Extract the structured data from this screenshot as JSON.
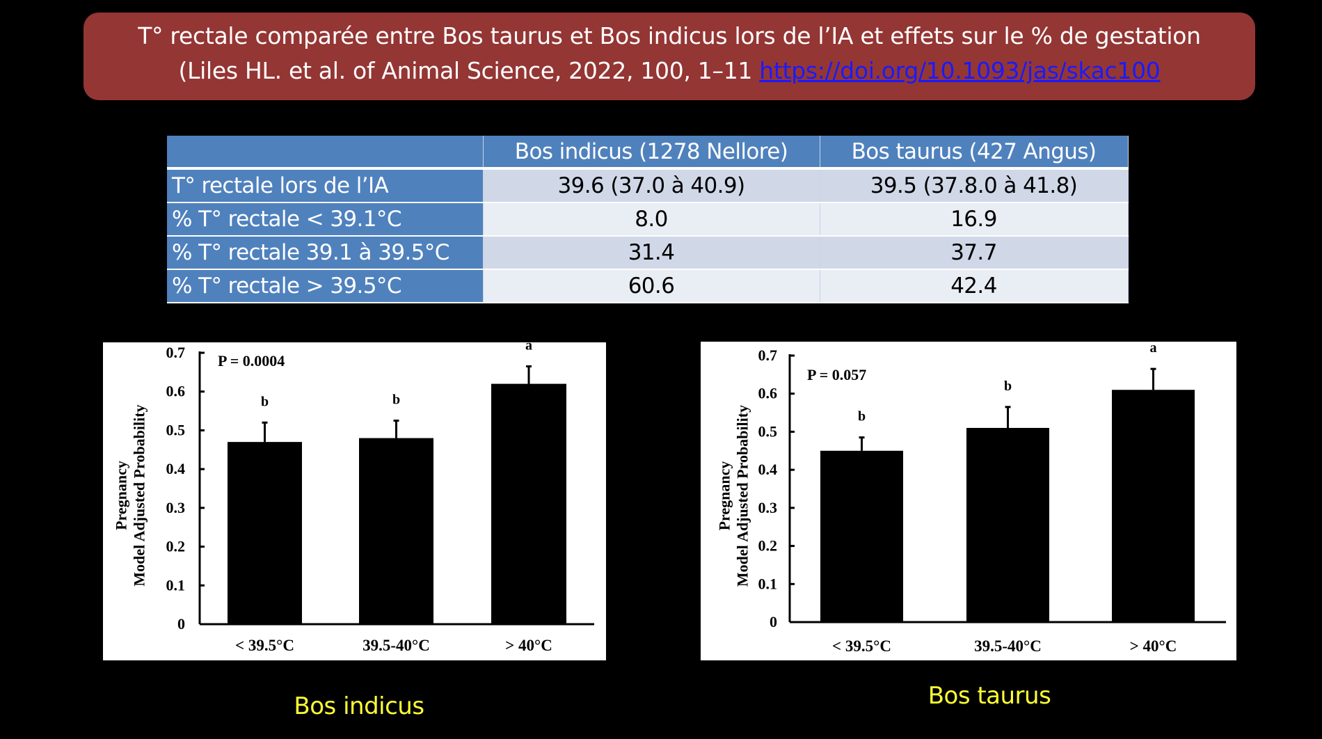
{
  "title": {
    "line1": "T° rectale comparée entre Bos taurus et Bos indicus lors de l’IA et effets sur le % de gestation",
    "line2_text": "(Liles HL. et al. of Animal Science, 2022, 100, 1–11 ",
    "link_text": "https://doi.org/10.1093/jas/skac100",
    "colors": {
      "background": "#943634",
      "text": "#ffffff",
      "link": "#1a1aff"
    }
  },
  "table": {
    "headers": [
      "",
      "Bos indicus (1278 Nellore)",
      "Bos taurus (427 Angus)"
    ],
    "rows": [
      {
        "label": "T° rectale lors de l’IA",
        "indicus": "39.6 (37.0 à 40.9)",
        "taurus": "39.5 (37.8.0 à 41.8)"
      },
      {
        "label": "% T° rectale < 39.1°C",
        "indicus": "8.0",
        "taurus": "16.9"
      },
      {
        "label": "% T° rectale 39.1 à 39.5°C",
        "indicus": "31.4",
        "taurus": "37.7"
      },
      {
        "label": "% T° rectale > 39.5°C",
        "indicus": "60.6",
        "taurus": "42.4"
      }
    ],
    "colors": {
      "header": "#4f81bd",
      "row_odd": "#d0d8e8",
      "row_even": "#e9edf4"
    }
  },
  "captions": {
    "left": "Bos indicus",
    "right": "Bos taurus",
    "color": "#ffff33"
  },
  "chart_data": [
    {
      "type": "bar",
      "title": "Bos indicus",
      "annotation": "P = 0.0004",
      "categories": [
        "< 39.5°C",
        "39.5-40°C",
        "> 40°C"
      ],
      "values": [
        0.47,
        0.48,
        0.62
      ],
      "error_upper": [
        0.52,
        0.525,
        0.665
      ],
      "significance_letters": [
        "b",
        "b",
        "a"
      ],
      "xlabel": "",
      "ylabel_line1": "Pregnancy",
      "ylabel_line2": "Model Adjusted Probability",
      "ylim": [
        0,
        0.7
      ],
      "yticks": [
        "0",
        "0.1",
        "0.2",
        "0.3",
        "0.4",
        "0.5",
        "0.6",
        "0.7"
      ],
      "grid": false,
      "legend": "none",
      "bar_color": "#000000"
    },
    {
      "type": "bar",
      "title": "Bos taurus",
      "annotation": "P = 0.057",
      "categories": [
        "< 39.5°C",
        "39.5-40°C",
        "> 40°C"
      ],
      "values": [
        0.45,
        0.51,
        0.61
      ],
      "error_upper": [
        0.485,
        0.565,
        0.665
      ],
      "significance_letters": [
        "b",
        "b",
        "a"
      ],
      "xlabel": "",
      "ylabel_line1": "Pregnancy",
      "ylabel_line2": "Model Adjusted Probability",
      "ylim": [
        0,
        0.7
      ],
      "yticks": [
        "0",
        "0.1",
        "0.2",
        "0.3",
        "0.4",
        "0.5",
        "0.6",
        "0.7"
      ],
      "grid": false,
      "legend": "none",
      "bar_color": "#000000"
    }
  ]
}
